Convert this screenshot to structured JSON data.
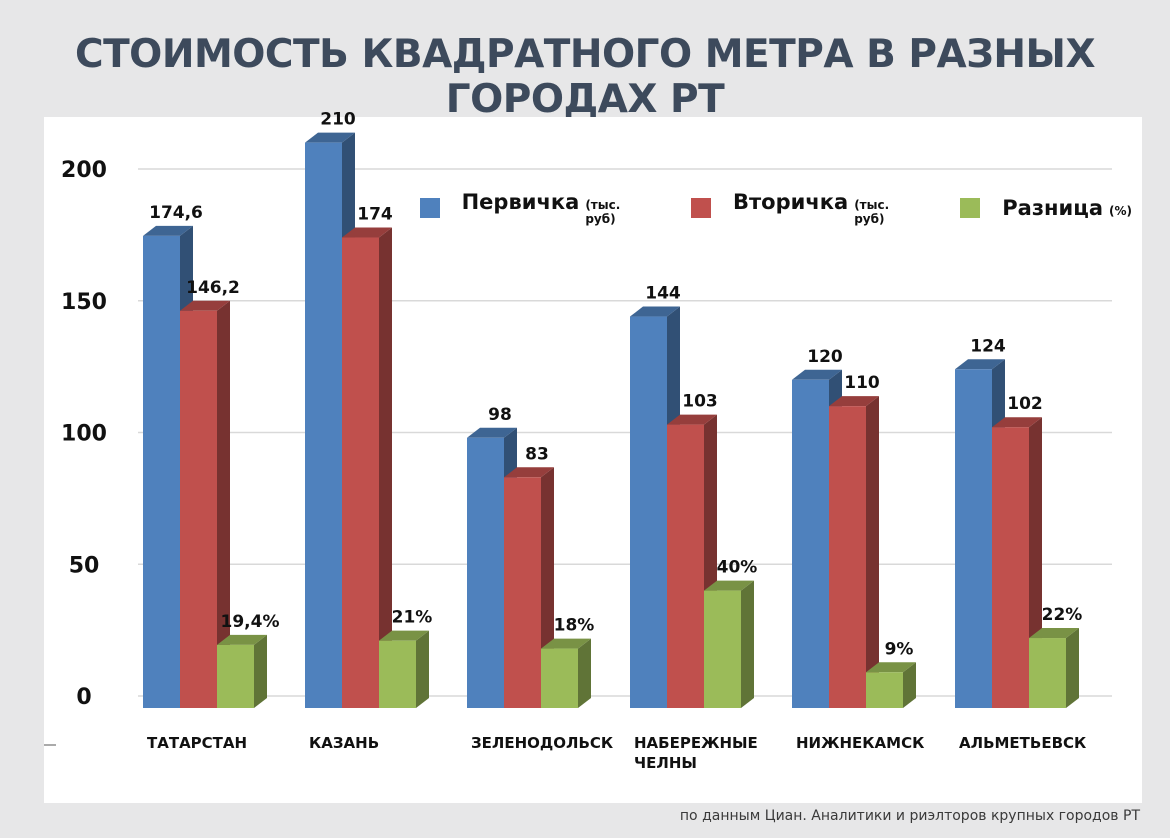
{
  "title": "СТОИМОСТЬ КВАДРАТНОГО МЕТРА В РАЗНЫХ ГОРОДАХ РТ",
  "source": "по данным Циан. Аналитики и риэлторов крупных городов РТ",
  "legend": [
    {
      "name": "Первичка",
      "unit": "(тыс. руб)",
      "color": "#4f81bd"
    },
    {
      "name": "Вторичка",
      "unit": "(тыс. руб)",
      "color": "#c0504d"
    },
    {
      "name": "Разница",
      "unit": "(%)",
      "color": "#9bbb59"
    }
  ],
  "chart_data": {
    "type": "bar",
    "title": "СТОИМОСТЬ КВАДРАТНОГО МЕТРА В РАЗНЫХ ГОРОДАХ РТ",
    "categories": [
      "ТАТАРСТАН",
      "КАЗАНЬ",
      "ЗЕЛЕНОДОЛЬСК",
      "НАБЕРЕЖНЫЕ ЧЕЛНЫ",
      "НИЖНЕКАМСК",
      "АЛЬМЕТЬЕВСК"
    ],
    "category_lines": [
      [
        "ТАТАРСТАН"
      ],
      [
        "КАЗАНЬ"
      ],
      [
        "ЗЕЛЕНОДОЛЬСК"
      ],
      [
        "НАБЕРЕЖНЫЕ",
        "ЧЕЛНЫ"
      ],
      [
        "НИЖНЕКАМСК"
      ],
      [
        "АЛЬМЕТЬЕВСК"
      ]
    ],
    "series": [
      {
        "name": "Первичка (тыс. руб)",
        "values": [
          174.6,
          210,
          98,
          144,
          120,
          124
        ],
        "labels": [
          "174,6",
          "210",
          "98",
          "144",
          "120",
          "124"
        ],
        "color": "#4f81bd"
      },
      {
        "name": "Вторичка (тыс. руб)",
        "values": [
          146.2,
          174,
          83,
          103,
          110,
          102
        ],
        "labels": [
          "146,2",
          "174",
          "83",
          "103",
          "110",
          "102"
        ],
        "color": "#c0504d"
      },
      {
        "name": "Разница (%)",
        "values": [
          19.4,
          21,
          18,
          40,
          9,
          22
        ],
        "labels": [
          "19,4%",
          "21%",
          "18%",
          "40%",
          "9%",
          "22%"
        ],
        "color": "#9bbb59"
      }
    ],
    "yticks": [
      0,
      50,
      100,
      150,
      200
    ],
    "ylim": [
      0,
      210
    ],
    "grid": true,
    "legend_position": "top-right"
  }
}
